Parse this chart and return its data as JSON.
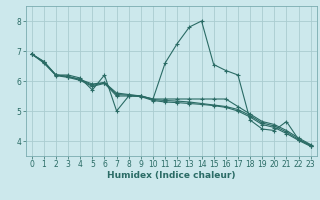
{
  "xlabel": "Humidex (Indice chaleur)",
  "bg_color": "#cce8ec",
  "grid_color": "#aaccd0",
  "line_color": "#2a6b65",
  "spine_color": "#7aacb0",
  "xlim": [
    -0.5,
    23.5
  ],
  "ylim": [
    3.5,
    8.5
  ],
  "yticks": [
    4,
    5,
    6,
    7,
    8
  ],
  "xticks": [
    0,
    1,
    2,
    3,
    4,
    5,
    6,
    7,
    8,
    9,
    10,
    11,
    12,
    13,
    14,
    15,
    16,
    17,
    18,
    19,
    20,
    21,
    22,
    23
  ],
  "series": [
    [
      6.9,
      6.65,
      6.2,
      6.2,
      6.1,
      5.7,
      6.2,
      5.0,
      5.5,
      5.5,
      5.4,
      6.6,
      7.25,
      7.8,
      8.0,
      6.55,
      6.35,
      6.2,
      4.7,
      4.4,
      4.35,
      4.65,
      4.05,
      3.85
    ],
    [
      6.9,
      6.65,
      6.2,
      6.15,
      6.05,
      5.9,
      5.95,
      5.6,
      5.55,
      5.5,
      5.4,
      5.4,
      5.4,
      5.4,
      5.4,
      5.4,
      5.4,
      5.15,
      4.9,
      4.65,
      4.55,
      4.35,
      4.1,
      3.88
    ],
    [
      6.9,
      6.62,
      6.2,
      6.15,
      6.05,
      5.85,
      5.95,
      5.55,
      5.53,
      5.5,
      5.38,
      5.35,
      5.33,
      5.3,
      5.25,
      5.2,
      5.15,
      5.05,
      4.85,
      4.6,
      4.5,
      4.3,
      4.05,
      3.85
    ],
    [
      6.9,
      6.6,
      6.18,
      6.12,
      6.02,
      5.82,
      5.92,
      5.5,
      5.5,
      5.48,
      5.35,
      5.3,
      5.28,
      5.25,
      5.22,
      5.18,
      5.12,
      5.0,
      4.8,
      4.55,
      4.45,
      4.25,
      4.02,
      3.82
    ]
  ],
  "tick_fontsize": 5.5,
  "xlabel_fontsize": 6.5
}
